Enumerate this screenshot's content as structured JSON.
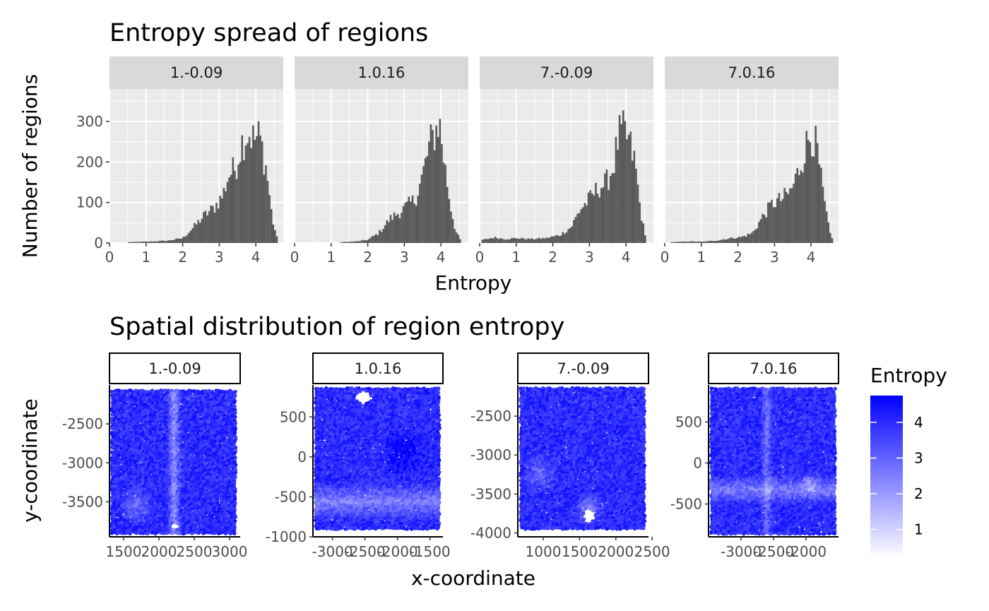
{
  "chart_data": [
    {
      "type": "bar",
      "subtype": "histogram",
      "title": "Entropy spread of regions",
      "xlabel": "Entropy",
      "ylabel": "Number of regions",
      "xlim": [
        0,
        4.75
      ],
      "ylim": [
        0,
        380
      ],
      "x_ticks": [
        0,
        1,
        2,
        3,
        4
      ],
      "y_ticks": [
        0,
        100,
        200,
        300
      ],
      "y_tick_labels": [
        "0",
        "100",
        "200",
        "300"
      ],
      "bin_width": 0.05,
      "grid": true,
      "bar_color": "#595959",
      "panel_background": "#ebebeb",
      "strip_background": "#d9d9d9",
      "facets": [
        {
          "label": "1.-0.09",
          "peaks": [
            {
              "x": 0.55,
              "h": 2
            },
            {
              "x": 0.9,
              "h": 3
            },
            {
              "x": 1.2,
              "h": 4
            },
            {
              "x": 1.6,
              "h": 6
            },
            {
              "x": 2.0,
              "h": 12
            },
            {
              "x": 2.3,
              "h": 40
            },
            {
              "x": 2.6,
              "h": 70
            },
            {
              "x": 2.85,
              "h": 88
            },
            {
              "x": 3.1,
              "h": 120
            },
            {
              "x": 3.25,
              "h": 170
            },
            {
              "x": 3.45,
              "h": 190
            },
            {
              "x": 3.6,
              "h": 250
            },
            {
              "x": 3.8,
              "h": 280
            },
            {
              "x": 3.95,
              "h": 260
            },
            {
              "x": 4.1,
              "h": 270
            },
            {
              "x": 4.3,
              "h": 180
            },
            {
              "x": 4.45,
              "h": 60
            },
            {
              "x": 4.6,
              "h": 5
            }
          ]
        },
        {
          "label": "1.0.16",
          "peaks": [
            {
              "x": 1.3,
              "h": 2
            },
            {
              "x": 1.7,
              "h": 4
            },
            {
              "x": 2.0,
              "h": 8
            },
            {
              "x": 2.3,
              "h": 25
            },
            {
              "x": 2.6,
              "h": 60
            },
            {
              "x": 2.9,
              "h": 80
            },
            {
              "x": 3.1,
              "h": 95
            },
            {
              "x": 3.3,
              "h": 110
            },
            {
              "x": 3.5,
              "h": 170
            },
            {
              "x": 3.7,
              "h": 250
            },
            {
              "x": 3.85,
              "h": 280
            },
            {
              "x": 3.95,
              "h": 310
            },
            {
              "x": 4.1,
              "h": 200
            },
            {
              "x": 4.25,
              "h": 100
            },
            {
              "x": 4.4,
              "h": 30
            },
            {
              "x": 4.55,
              "h": 5
            }
          ]
        },
        {
          "label": "7.-0.09",
          "peaks": [
            {
              "x": 0.1,
              "h": 8
            },
            {
              "x": 0.4,
              "h": 14
            },
            {
              "x": 0.7,
              "h": 10
            },
            {
              "x": 1.0,
              "h": 12
            },
            {
              "x": 1.4,
              "h": 10
            },
            {
              "x": 1.8,
              "h": 12
            },
            {
              "x": 2.2,
              "h": 20
            },
            {
              "x": 2.5,
              "h": 40
            },
            {
              "x": 2.75,
              "h": 85
            },
            {
              "x": 3.0,
              "h": 110
            },
            {
              "x": 3.25,
              "h": 140
            },
            {
              "x": 3.45,
              "h": 150
            },
            {
              "x": 3.65,
              "h": 190
            },
            {
              "x": 3.8,
              "h": 270
            },
            {
              "x": 3.95,
              "h": 280
            },
            {
              "x": 4.1,
              "h": 250
            },
            {
              "x": 4.25,
              "h": 200
            },
            {
              "x": 4.4,
              "h": 80
            },
            {
              "x": 4.55,
              "h": 5
            }
          ]
        },
        {
          "label": "7.0.16",
          "peaks": [
            {
              "x": 0.2,
              "h": 2
            },
            {
              "x": 0.7,
              "h": 4
            },
            {
              "x": 1.0,
              "h": 3
            },
            {
              "x": 1.4,
              "h": 6
            },
            {
              "x": 1.8,
              "h": 12
            },
            {
              "x": 2.1,
              "h": 15
            },
            {
              "x": 2.4,
              "h": 25
            },
            {
              "x": 2.7,
              "h": 70
            },
            {
              "x": 2.95,
              "h": 100
            },
            {
              "x": 3.2,
              "h": 110
            },
            {
              "x": 3.45,
              "h": 130
            },
            {
              "x": 3.65,
              "h": 180
            },
            {
              "x": 3.85,
              "h": 240
            },
            {
              "x": 4.0,
              "h": 280
            },
            {
              "x": 4.15,
              "h": 240
            },
            {
              "x": 4.35,
              "h": 110
            },
            {
              "x": 4.5,
              "h": 30
            },
            {
              "x": 4.6,
              "h": 5
            }
          ]
        }
      ]
    },
    {
      "type": "scatter",
      "title": "Spatial distribution of region entropy",
      "xlabel": "x-coordinate",
      "ylabel": "y-coordinate",
      "color_scale": {
        "title": "Entropy",
        "low_color": "#ffffff",
        "high_color": "#0000ff",
        "range": [
          0.2,
          4.75
        ],
        "breaks": [
          1,
          2,
          3,
          4
        ]
      },
      "strip_background": "#ffffff",
      "panel_background": "#ffffff",
      "facets": [
        {
          "label": "1.-0.09",
          "xlim": [
            1300,
            3150
          ],
          "ylim": [
            -3950,
            -2000
          ],
          "x_ticks": [
            1500,
            2000,
            2500,
            3000
          ],
          "x_tick_labels": [
            "1500",
            "2000",
            "2500",
            "3000"
          ],
          "y_ticks": [
            -2500,
            -3000,
            -3500
          ],
          "y_tick_labels": [
            "-2500",
            "-3000",
            "-3500"
          ],
          "data_x": [
            1340,
            3100
          ],
          "data_y": [
            -3900,
            -2080
          ],
          "features": [
            {
              "type": "band",
              "axis": "x",
              "pos": 0.5,
              "width": 0.06,
              "depth": 0.6
            },
            {
              "type": "blob",
              "u": 0.2,
              "v": 0.2,
              "r": 0.15,
              "depth": 0.4
            },
            {
              "type": "notch",
              "u": 0.5,
              "v": 0.05,
              "r": 0.03
            }
          ]
        },
        {
          "label": "1.0.16",
          "xlim": [
            -3300,
            -1300
          ],
          "ylim": [
            -1000,
            900
          ],
          "x_ticks": [
            -3000,
            -2500,
            -2000,
            -1500
          ],
          "x_tick_labels": [
            "-3000",
            "-2500",
            "-2000",
            "-1500"
          ],
          "y_ticks": [
            500,
            0,
            -500,
            -1000
          ],
          "y_tick_labels": [
            "500",
            "0",
            "-500",
            "-1000"
          ],
          "data_x": [
            -3250,
            -1330
          ],
          "data_y": [
            -920,
            850
          ],
          "features": [
            {
              "type": "band",
              "axis": "y",
              "pos": 0.2,
              "width": 0.14,
              "depth": 0.5
            },
            {
              "type": "blob",
              "u": 0.7,
              "v": 0.55,
              "r": 0.2,
              "depth": -0.3
            },
            {
              "type": "notch",
              "u": 0.38,
              "v": 0.94,
              "r": 0.06
            }
          ]
        },
        {
          "label": "7.-0.09",
          "xlim": [
            650,
            2450
          ],
          "ylim": [
            -4050,
            -2100
          ],
          "x_ticks": [
            1000,
            1500,
            2000,
            2500
          ],
          "x_tick_labels": [
            "1000",
            "1500",
            "2000",
            "2500"
          ],
          "y_ticks": [
            -2500,
            -3000,
            -3500,
            -4000
          ],
          "y_tick_labels": [
            "-2500",
            "-3000",
            "-3500",
            "-4000"
          ],
          "data_x": [
            700,
            2400
          ],
          "data_y": [
            -3960,
            -2150
          ],
          "features": [
            {
              "type": "blob",
              "u": 0.55,
              "v": 0.15,
              "r": 0.12,
              "depth": 0.6
            },
            {
              "type": "blob",
              "u": 0.15,
              "v": 0.4,
              "r": 0.15,
              "depth": 0.4
            },
            {
              "type": "notch",
              "u": 0.55,
              "v": 0.1,
              "r": 0.05
            }
          ]
        },
        {
          "label": "7.0.16",
          "xlim": [
            -3500,
            -1500
          ],
          "ylim": [
            -900,
            950
          ],
          "x_ticks": [
            -3000,
            -2500,
            -2000
          ],
          "x_tick_labels": [
            "-3000",
            "-2500",
            "-2000"
          ],
          "y_ticks": [
            500,
            0,
            -500
          ],
          "y_tick_labels": [
            "500",
            "0",
            "-500"
          ],
          "data_x": [
            -3450,
            -1560
          ],
          "data_y": [
            -860,
            900
          ],
          "features": [
            {
              "type": "band",
              "axis": "y",
              "pos": 0.3,
              "width": 0.1,
              "depth": 0.5
            },
            {
              "type": "band",
              "axis": "x",
              "pos": 0.45,
              "width": 0.05,
              "depth": 0.4
            },
            {
              "type": "blob",
              "u": 0.8,
              "v": 0.35,
              "r": 0.1,
              "depth": 0.4
            }
          ]
        }
      ]
    }
  ]
}
